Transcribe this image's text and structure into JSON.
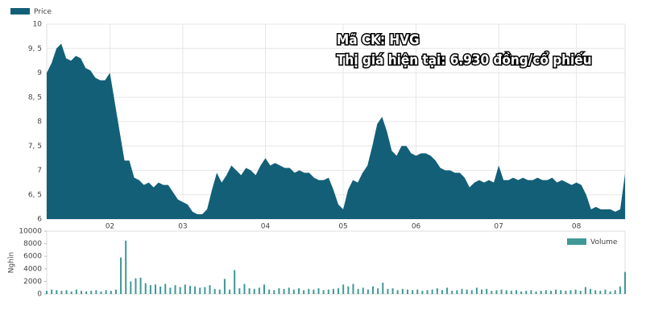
{
  "chart_data": [
    {
      "type": "area",
      "annotations": [
        "Mã CK: HVG",
        "Thị giá hiện tại: 6.930 đồng/cổ phiếu"
      ],
      "categories": [
        null,
        null,
        null,
        null,
        null,
        null,
        null,
        null,
        null,
        null,
        null,
        null,
        null,
        "02",
        null,
        null,
        null,
        null,
        null,
        null,
        null,
        null,
        null,
        null,
        null,
        null,
        null,
        null,
        "03",
        null,
        null,
        null,
        null,
        null,
        null,
        null,
        null,
        null,
        null,
        null,
        null,
        null,
        null,
        null,
        null,
        "04",
        null,
        null,
        null,
        null,
        null,
        null,
        null,
        null,
        null,
        null,
        null,
        null,
        null,
        null,
        null,
        "05",
        null,
        null,
        null,
        null,
        null,
        null,
        null,
        null,
        null,
        null,
        null,
        null,
        null,
        null,
        "06",
        null,
        null,
        null,
        null,
        null,
        null,
        null,
        null,
        null,
        null,
        null,
        null,
        null,
        null,
        null,
        null,
        "07",
        null,
        null,
        null,
        null,
        null,
        null,
        null,
        null,
        null,
        null,
        null,
        null,
        null,
        null,
        null,
        "08",
        null,
        null,
        null,
        null,
        null,
        null,
        null,
        null,
        null,
        null
      ],
      "series": [
        {
          "name": "Price",
          "color": "#135f78",
          "values": [
            9.0,
            9.2,
            9.5,
            9.6,
            9.3,
            9.25,
            9.35,
            9.3,
            9.1,
            9.05,
            8.9,
            8.85,
            8.85,
            9.0,
            8.4,
            7.8,
            7.2,
            7.2,
            6.85,
            6.8,
            6.7,
            6.75,
            6.65,
            6.75,
            6.7,
            6.7,
            6.55,
            6.4,
            6.35,
            6.3,
            6.15,
            6.1,
            6.1,
            6.2,
            6.6,
            6.95,
            6.75,
            6.9,
            7.1,
            7.0,
            6.9,
            7.05,
            7.0,
            6.9,
            7.1,
            7.25,
            7.1,
            7.15,
            7.1,
            7.05,
            7.05,
            6.95,
            7.0,
            6.95,
            6.95,
            6.85,
            6.8,
            6.8,
            6.85,
            6.6,
            6.3,
            6.2,
            6.6,
            6.8,
            6.75,
            6.95,
            7.1,
            7.5,
            7.95,
            8.1,
            7.8,
            7.4,
            7.3,
            7.5,
            7.5,
            7.35,
            7.3,
            7.35,
            7.35,
            7.3,
            7.2,
            7.05,
            7.0,
            7.0,
            6.95,
            6.95,
            6.85,
            6.65,
            6.75,
            6.8,
            6.75,
            6.8,
            6.75,
            7.1,
            6.8,
            6.8,
            6.85,
            6.8,
            6.85,
            6.8,
            6.8,
            6.85,
            6.8,
            6.8,
            6.85,
            6.75,
            6.8,
            6.75,
            6.7,
            6.75,
            6.7,
            6.5,
            6.2,
            6.25,
            6.2,
            6.2,
            6.2,
            6.15,
            6.2,
            6.93
          ]
        }
      ],
      "ylim": [
        6,
        10
      ],
      "yticks": [
        6,
        {
          "value": 6.5,
          "label": "6, 5"
        },
        7,
        {
          "value": 7.5,
          "label": "7, 5"
        },
        8,
        {
          "value": 8.5,
          "label": "8, 5"
        },
        9,
        {
          "value": 9.5,
          "label": "9, 5"
        },
        10
      ],
      "grid": true,
      "legend": "top-left"
    },
    {
      "type": "bar",
      "y_label": "Nghìn",
      "series": [
        {
          "name": "Volume",
          "color": "#3f9896",
          "values": [
            500,
            700,
            600,
            500,
            600,
            400,
            700,
            500,
            400,
            500,
            600,
            400,
            600,
            500,
            700,
            5800,
            8500,
            2000,
            2500,
            2600,
            1700,
            1400,
            1500,
            1200,
            1600,
            1000,
            1400,
            1100,
            1500,
            1300,
            1200,
            1000,
            1100,
            1400,
            800,
            700,
            2400,
            700,
            3800,
            900,
            1600,
            900,
            800,
            1000,
            1500,
            700,
            600,
            900,
            800,
            1000,
            700,
            900,
            600,
            800,
            700,
            900,
            600,
            700,
            800,
            900,
            1500,
            1200,
            1600,
            800,
            1000,
            700,
            1200,
            900,
            1800,
            800,
            900,
            600,
            800,
            700,
            600,
            700,
            500,
            600,
            700,
            900,
            600,
            1000,
            500,
            600,
            800,
            700,
            600,
            1000,
            700,
            800,
            500,
            600,
            700,
            600,
            500,
            600,
            400,
            500,
            600,
            400,
            500,
            600,
            500,
            700,
            600,
            500,
            600,
            700,
            500,
            1100,
            800,
            600,
            500,
            700,
            400,
            600,
            1200,
            3500
          ]
        }
      ],
      "ylim": [
        0,
        10000
      ],
      "yticks": [
        0,
        2000,
        4000,
        6000,
        8000,
        10000
      ],
      "legend": "top-right"
    }
  ]
}
